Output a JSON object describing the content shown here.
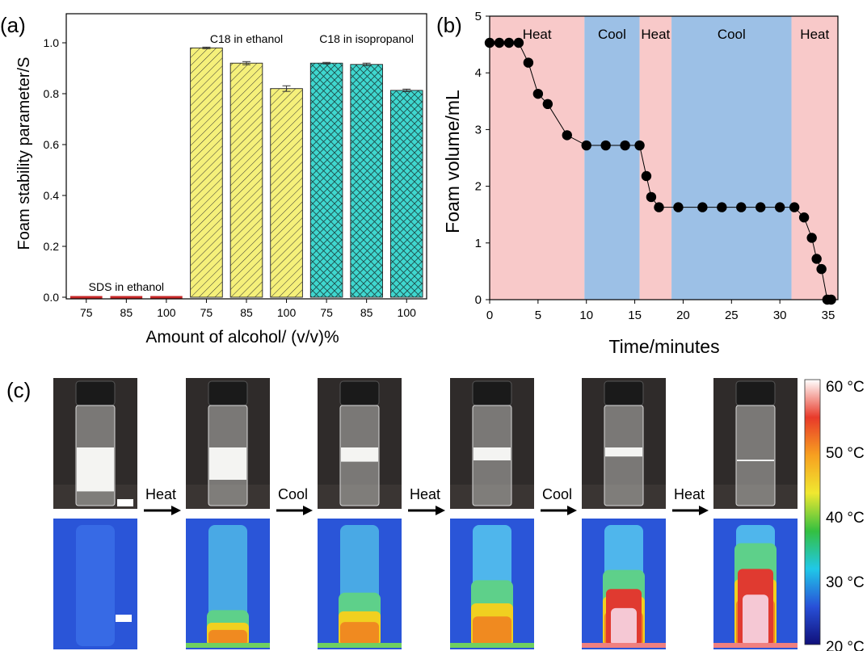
{
  "panels": {
    "a": "(a)",
    "b": "(b)",
    "c": "(c)"
  },
  "chart_data": [
    {
      "type": "bar",
      "panel": "a",
      "xlabel": "Amount of alcohol/ (v/v)%",
      "ylabel": "Foam stability parameter/S",
      "ylim": [
        0,
        1.05
      ],
      "yticks": [
        "0.0",
        "0.2",
        "0.4",
        "0.6",
        "0.8",
        "1.0"
      ],
      "categories": [
        "75",
        "85",
        "100",
        "75",
        "85",
        "100",
        "75",
        "85",
        "100"
      ],
      "groups": [
        {
          "label": "SDS in ethanol",
          "values": [
            0.0,
            0.0,
            0.0
          ],
          "errors": [
            0,
            0,
            0
          ],
          "color": "#c62828",
          "pattern": "none"
        },
        {
          "label": "C18 in ethanol",
          "values": [
            0.98,
            0.92,
            0.82
          ],
          "errors": [
            0.003,
            0.006,
            0.011
          ],
          "color": "#f5f07a",
          "pattern": "diagonal"
        },
        {
          "label": "C18 in isopropanol",
          "values": [
            0.92,
            0.915,
            0.813
          ],
          "errors": [
            0.003,
            0.005,
            0.005
          ],
          "color": "#3fd7cf",
          "pattern": "crosshatch"
        }
      ]
    },
    {
      "type": "line",
      "panel": "b",
      "xlabel": "Time/minutes",
      "ylabel": "Foam volume/mL",
      "xlim": [
        0,
        36
      ],
      "ylim": [
        0,
        5
      ],
      "xticks": [
        "0",
        "5",
        "10",
        "15",
        "20",
        "25",
        "30",
        "35"
      ],
      "yticks": [
        "0",
        "1",
        "2",
        "3",
        "4",
        "5"
      ],
      "x": [
        0,
        1,
        2,
        3,
        4,
        5,
        6,
        8,
        10,
        12,
        14,
        15.5,
        16.2,
        16.7,
        17.5,
        19.5,
        22,
        24,
        26,
        28,
        30,
        31.5,
        32.5,
        33.3,
        33.8,
        34.3,
        34.9,
        35.3
      ],
      "y": [
        4.53,
        4.53,
        4.53,
        4.53,
        4.18,
        3.63,
        3.45,
        2.9,
        2.72,
        2.72,
        2.72,
        2.72,
        2.18,
        1.81,
        1.63,
        1.63,
        1.63,
        1.63,
        1.63,
        1.63,
        1.63,
        1.63,
        1.45,
        1.09,
        0.72,
        0.54,
        0.0,
        0.0
      ],
      "regions": [
        {
          "label": "Heat",
          "start": 0,
          "end": 9.8,
          "color": "#f8c9c9"
        },
        {
          "label": "Cool",
          "start": 9.8,
          "end": 15.5,
          "color": "#9cc0e6"
        },
        {
          "label": "Heat",
          "start": 15.5,
          "end": 18.8,
          "color": "#f8c9c9"
        },
        {
          "label": "Cool",
          "start": 18.8,
          "end": 31.2,
          "color": "#9cc0e6"
        },
        {
          "label": "Heat",
          "start": 31.2,
          "end": 36,
          "color": "#f8c9c9"
        }
      ]
    }
  ],
  "panel_c": {
    "steps": [
      "Heat",
      "Cool",
      "Heat",
      "Cool",
      "Heat"
    ],
    "foam_levels": [
      0.68,
      0.5,
      0.22,
      0.2,
      0.14,
      0.0
    ],
    "heat_levels": [
      0.0,
      0.35,
      0.52,
      0.64,
      0.74,
      1.0
    ],
    "colorbar": {
      "labels": [
        "60 °C",
        "50 °C",
        "40 °C",
        "30 °C",
        "20 °C"
      ],
      "stops": [
        "#ffffff",
        "#e83a2a",
        "#f7a020",
        "#f0e830",
        "#34c040",
        "#20c8e8",
        "#2850d8",
        "#10107a"
      ]
    }
  }
}
